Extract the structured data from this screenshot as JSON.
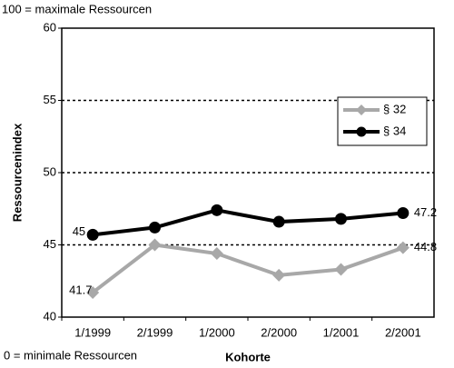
{
  "chart_data": {
    "type": "line",
    "top_note": "100 = maximale Ressourcen",
    "bottom_note": "0 = minimale Ressourcen",
    "x_label": "Kohorte",
    "y_label": "Ressourcenindex",
    "categories": [
      "1/1999",
      "2/1999",
      "1/2000",
      "2/2000",
      "1/2001",
      "2/2001"
    ],
    "series": [
      {
        "name": "§ 32",
        "color": "#a8a8a8",
        "marker": "diamond",
        "values": [
          41.7,
          45.0,
          44.4,
          42.9,
          43.3,
          44.8
        ],
        "value_labels": [
          "41.7",
          null,
          null,
          null,
          null,
          "44.8"
        ]
      },
      {
        "name": "§ 34",
        "color": "#000000",
        "marker": "circle",
        "values": [
          45.7,
          46.2,
          47.4,
          46.6,
          46.8,
          47.2
        ],
        "value_labels": [
          null,
          null,
          null,
          null,
          null,
          "47.2"
        ]
      }
    ],
    "annotations": [
      "45"
    ],
    "ylim": [
      40,
      60
    ],
    "yticks": [
      40,
      45,
      50,
      55,
      60
    ],
    "grid": true,
    "legend": "upper right"
  }
}
